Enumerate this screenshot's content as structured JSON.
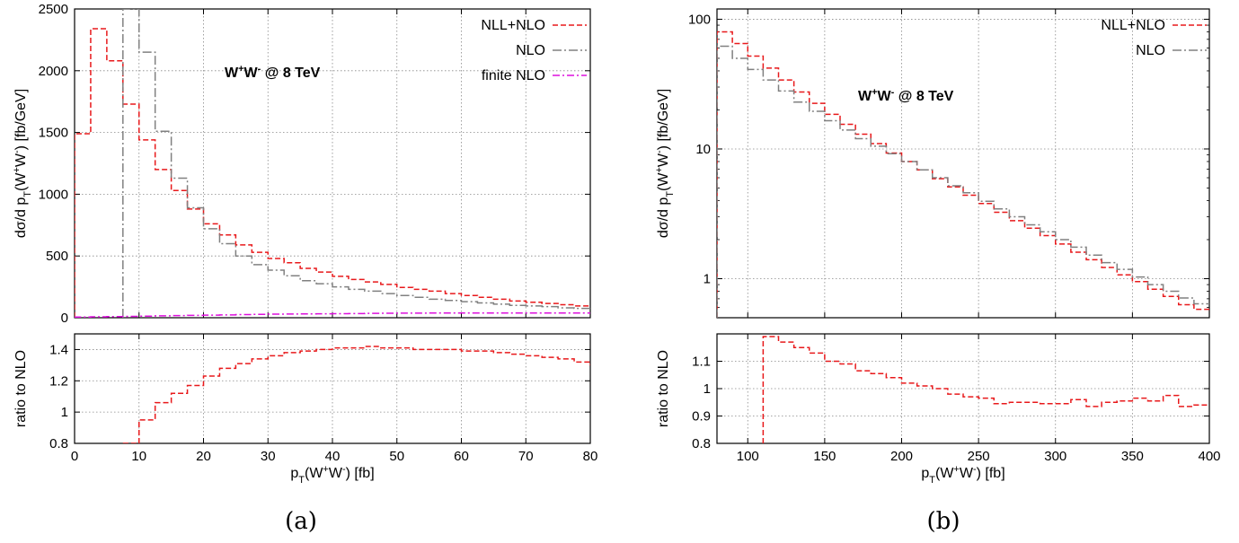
{
  "captions": [
    "(a)",
    "(b)"
  ],
  "colors": {
    "nllnlo": "#e8191b",
    "nlo": "#808080",
    "finite": "#dd10dd"
  },
  "chart_data": [
    {
      "type": "line",
      "panel": "a-top",
      "title": "",
      "annotation_html": "W<tspan baseline-shift=\"super\" font-size=\"11\">+</tspan>W<tspan baseline-shift=\"super\" font-size=\"11\">-</tspan> @ 8 TeV",
      "ylabel_parts": [
        "dσ/d p",
        "T",
        "(W",
        "+",
        "W",
        "-",
        ") [fb/GeV]"
      ],
      "xlim": [
        0,
        80
      ],
      "ylim": [
        0,
        2500
      ],
      "yscale": "linear",
      "xticks": [
        0,
        10,
        20,
        30,
        40,
        50,
        60,
        70,
        80
      ],
      "yticks": [
        0,
        500,
        1000,
        1500,
        2000,
        2500
      ],
      "grid": true,
      "legend_position": "top-right",
      "edges": [
        0,
        2.5,
        5,
        7.5,
        10,
        12.5,
        15,
        17.5,
        20,
        22.5,
        25,
        27.5,
        30,
        32.5,
        35,
        37.5,
        40,
        42.5,
        45,
        47.5,
        50,
        52.5,
        55,
        57.5,
        60,
        62.5,
        65,
        67.5,
        70,
        72.5,
        75,
        77.5,
        80
      ],
      "series": [
        {
          "name": "NLL+NLO",
          "key": "nllnlo",
          "dash": "6,3",
          "values": [
            1490,
            2340,
            2080,
            1730,
            1440,
            1200,
            1030,
            880,
            760,
            670,
            590,
            530,
            480,
            445,
            400,
            370,
            335,
            310,
            290,
            270,
            245,
            230,
            215,
            195,
            180,
            165,
            150,
            135,
            125,
            115,
            105,
            95
          ]
        },
        {
          "name": "NLO",
          "key": "nlo",
          "dash": "10,3,2,3",
          "values": [
            null,
            null,
            null,
            2500,
            2150,
            1510,
            1130,
            890,
            720,
            600,
            500,
            430,
            385,
            340,
            300,
            275,
            250,
            230,
            215,
            195,
            180,
            165,
            150,
            140,
            130,
            120,
            110,
            100,
            95,
            90,
            80,
            75
          ]
        },
        {
          "name": "finite NLO",
          "key": "finite",
          "dash": "8,3,2,3",
          "values": [
            5,
            7,
            9,
            11,
            13,
            15,
            17,
            19,
            21,
            23,
            25,
            27,
            29,
            30,
            31,
            32,
            33,
            34,
            35,
            36,
            37,
            37,
            38,
            38,
            38,
            38,
            38,
            38,
            38,
            38,
            38,
            38
          ]
        }
      ]
    },
    {
      "type": "line",
      "panel": "a-bottom",
      "xlabel_parts": [
        "p",
        "T",
        "(W",
        "+",
        "W",
        "-",
        ") [fb]"
      ],
      "ylabel": "ratio to NLO",
      "xlim": [
        0,
        80
      ],
      "ylim": [
        0.8,
        1.5
      ],
      "yscale": "linear",
      "xticks": [
        0,
        10,
        20,
        30,
        40,
        50,
        60,
        70,
        80
      ],
      "yticks": [
        0.8,
        1,
        1.2,
        1.4
      ],
      "grid": true,
      "edges": [
        7.5,
        10,
        12.5,
        15,
        17.5,
        20,
        22.5,
        25,
        27.5,
        30,
        32.5,
        35,
        37.5,
        40,
        42.5,
        45,
        47.5,
        50,
        52.5,
        55,
        57.5,
        60,
        62.5,
        65,
        67.5,
        70,
        72.5,
        75,
        77.5,
        80
      ],
      "series": [
        {
          "name": "",
          "key": "nllnlo",
          "dash": "6,3",
          "values": [
            0.8,
            0.95,
            1.06,
            1.12,
            1.17,
            1.23,
            1.28,
            1.31,
            1.34,
            1.36,
            1.38,
            1.39,
            1.4,
            1.41,
            1.41,
            1.42,
            1.41,
            1.41,
            1.4,
            1.4,
            1.4,
            1.39,
            1.39,
            1.38,
            1.37,
            1.36,
            1.35,
            1.34,
            1.32,
            1.3
          ]
        }
      ]
    },
    {
      "type": "line",
      "panel": "b-top",
      "title": "",
      "annotation_html": "W<tspan baseline-shift=\"super\" font-size=\"11\">+</tspan>W<tspan baseline-shift=\"super\" font-size=\"11\">-</tspan> @ 8 TeV",
      "ylabel_parts": [
        "dσ/d p",
        "T",
        "(W",
        "+",
        "W",
        "-",
        ") [fb/GeV]"
      ],
      "xlim": [
        80,
        400
      ],
      "ylim": [
        0.5,
        120
      ],
      "yscale": "log",
      "xticks": [
        100,
        150,
        200,
        250,
        300,
        350,
        400
      ],
      "yticks": [
        1,
        10,
        100
      ],
      "grid": true,
      "legend_position": "top-right",
      "edges": [
        80,
        90,
        100,
        110,
        120,
        130,
        140,
        150,
        160,
        170,
        180,
        190,
        200,
        210,
        220,
        230,
        240,
        250,
        260,
        270,
        280,
        290,
        300,
        310,
        320,
        330,
        340,
        350,
        360,
        370,
        380,
        390,
        400
      ],
      "series": [
        {
          "name": "NLL+NLO",
          "key": "nllnlo",
          "dash": "6,3",
          "values": [
            80,
            65,
            52,
            42,
            34,
            27.5,
            22.5,
            18.5,
            15.5,
            13,
            11,
            9.3,
            8.0,
            6.9,
            5.9,
            5.1,
            4.4,
            3.8,
            3.25,
            2.8,
            2.45,
            2.15,
            1.85,
            1.6,
            1.4,
            1.22,
            1.07,
            0.95,
            0.83,
            0.73,
            0.63,
            0.58
          ]
        },
        {
          "name": "NLO",
          "key": "nlo",
          "dash": "10,3,2,3",
          "values": [
            62,
            50,
            41,
            34,
            28,
            23,
            19.5,
            16.5,
            14,
            12,
            10.5,
            9.2,
            8.0,
            6.9,
            6.0,
            5.2,
            4.6,
            3.95,
            3.45,
            3.0,
            2.6,
            2.3,
            2.0,
            1.75,
            1.52,
            1.33,
            1.18,
            1.03,
            0.9,
            0.8,
            0.71,
            0.64
          ]
        }
      ]
    },
    {
      "type": "line",
      "panel": "b-bottom",
      "xlabel_parts": [
        "p",
        "T",
        "(W",
        "+",
        "W",
        "-",
        ") [fb]"
      ],
      "ylabel": "ratio to NLO",
      "xlim": [
        80,
        400
      ],
      "ylim": [
        0.8,
        1.2
      ],
      "yscale": "linear",
      "xticks": [
        100,
        150,
        200,
        250,
        300,
        350,
        400
      ],
      "yticks": [
        0.8,
        0.9,
        1,
        1.1
      ],
      "grid": true,
      "edges": [
        110,
        120,
        130,
        140,
        150,
        160,
        170,
        180,
        190,
        200,
        210,
        220,
        230,
        240,
        250,
        260,
        270,
        280,
        290,
        300,
        310,
        320,
        330,
        340,
        350,
        360,
        370,
        380,
        390,
        400
      ],
      "series": [
        {
          "name": "",
          "key": "nllnlo",
          "dash": "6,3",
          "values": [
            1.19,
            1.17,
            1.15,
            1.13,
            1.1,
            1.09,
            1.065,
            1.055,
            1.04,
            1.02,
            1.01,
            1.0,
            0.98,
            0.97,
            0.965,
            0.945,
            0.95,
            0.95,
            0.945,
            0.945,
            0.96,
            0.935,
            0.95,
            0.955,
            0.965,
            0.955,
            0.975,
            0.935,
            0.94,
            0.94
          ]
        }
      ]
    }
  ]
}
